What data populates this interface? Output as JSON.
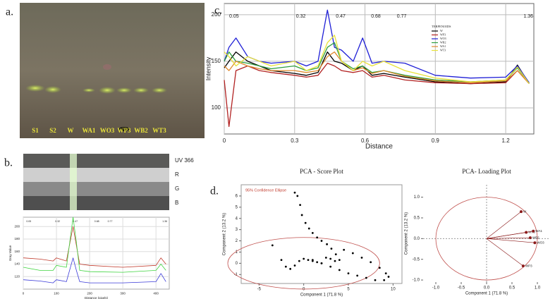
{
  "panel_labels": [
    "a.",
    "b.",
    "c.",
    "d."
  ],
  "tlc_plate": {
    "lane_labels": [
      "S1",
      "S2",
      "W",
      "WA1",
      "WO3",
      "WP3",
      "WB2",
      "WT3"
    ]
  },
  "densitometry": {
    "channel_labels": [
      "UV 366",
      "R",
      "G",
      "B"
    ]
  },
  "chart_data": [
    {
      "type": "line",
      "x_label": "Distance",
      "y_label": "Intensity",
      "annotations": [
        "0.05",
        "0.32",
        "0.47",
        "0.68",
        "0.77",
        "1.36"
      ],
      "legend_title": "TERPENOIDS",
      "x": [
        0,
        0.02,
        0.05,
        0.1,
        0.15,
        0.2,
        0.3,
        0.35,
        0.4,
        0.44,
        0.47,
        0.5,
        0.55,
        0.59,
        0.63,
        0.68,
        0.77,
        0.9,
        1.05,
        1.2,
        1.25,
        1.3
      ],
      "series": [
        {
          "name": "W",
          "color": "#000000",
          "values": [
            143,
            150,
            160,
            150,
            145,
            140,
            137,
            135,
            138,
            160,
            150,
            148,
            140,
            145,
            135,
            137,
            133,
            128,
            126,
            128,
            146,
            126
          ]
        },
        {
          "name": "WP3",
          "color": "#b22222",
          "values": [
            130,
            80,
            140,
            145,
            140,
            138,
            135,
            133,
            135,
            148,
            145,
            140,
            138,
            140,
            133,
            135,
            130,
            127,
            126,
            127,
            140,
            126
          ]
        },
        {
          "name": "WO3",
          "color": "#1f1fd6",
          "values": [
            150,
            165,
            175,
            155,
            150,
            148,
            150,
            145,
            150,
            205,
            165,
            162,
            150,
            175,
            148,
            150,
            148,
            135,
            132,
            133,
            145,
            127
          ]
        },
        {
          "name": "WB2",
          "color": "#2e9e3e",
          "values": [
            150,
            160,
            150,
            148,
            145,
            142,
            145,
            140,
            143,
            165,
            170,
            150,
            142,
            145,
            138,
            140,
            135,
            130,
            128,
            130,
            143,
            126
          ]
        },
        {
          "name": "WA1",
          "color": "#e08a2e",
          "values": [
            145,
            140,
            150,
            145,
            142,
            140,
            140,
            138,
            140,
            155,
            160,
            150,
            140,
            143,
            137,
            140,
            134,
            129,
            127,
            129,
            140,
            126
          ]
        },
        {
          "name": "WT3",
          "color": "#e8e23a",
          "values": [
            160,
            155,
            145,
            155,
            150,
            145,
            150,
            140,
            145,
            170,
            178,
            150,
            140,
            150,
            145,
            150,
            140,
            132,
            128,
            130,
            144,
            126
          ]
        }
      ],
      "xlim": [
        0,
        1.32
      ],
      "xticks": [
        0,
        0.3,
        0.6,
        0.9,
        1.2
      ],
      "ylim": [
        72,
        212
      ],
      "yticks": [
        100,
        150,
        200
      ],
      "grid": true
    },
    {
      "type": "line",
      "x_label": "Distance (pixels)",
      "y_label": "Gray Value",
      "annotations": [
        "0.05",
        "0.32",
        "0.47",
        "0.68",
        "0.77",
        "1.36"
      ],
      "x": [
        0,
        50,
        90,
        100,
        130,
        150,
        160,
        170,
        200,
        300,
        400,
        415,
        430
      ],
      "series": [
        {
          "color": "#c0392b",
          "values": [
            150,
            148,
            145,
            150,
            145,
            200,
            170,
            140,
            138,
            135,
            138,
            150,
            140
          ]
        },
        {
          "color": "#3fd43f",
          "values": [
            135,
            130,
            130,
            138,
            135,
            215,
            175,
            130,
            128,
            127,
            130,
            140,
            130
          ]
        },
        {
          "color": "#3a3ad8",
          "values": [
            115,
            113,
            110,
            115,
            112,
            150,
            130,
            112,
            110,
            110,
            112,
            125,
            112
          ]
        }
      ],
      "xlim": [
        0,
        440
      ],
      "xticks": [
        0,
        100,
        200,
        300,
        400
      ],
      "ylim": [
        100,
        215
      ],
      "yticks": [
        120,
        140,
        160,
        180,
        200
      ],
      "grid": true
    },
    {
      "type": "scatter",
      "title": "PCA - Score Plot",
      "x_label": "Component 1  (71.8 %)",
      "y_label": "Component 2  (13.2 %)",
      "ellipse_label": "95% Confidence Ellipse",
      "ellipse": {
        "center": [
          0,
          0
        ],
        "radii": [
          8.5,
          2.3
        ]
      },
      "x": [
        -1,
        -0.7,
        -0.4,
        -0.2,
        0.2,
        0.6,
        1,
        1.5,
        2,
        2.6,
        3.1,
        3.6,
        4,
        -3.5,
        -2.5,
        -2,
        -1.5,
        -1,
        -0.5,
        0,
        0.5,
        1,
        1.5,
        2,
        2.5,
        3,
        3.5,
        4.5,
        5.5,
        6.5,
        7.5,
        8.5,
        9.2,
        9.5,
        9,
        8,
        7,
        6,
        5,
        4,
        3,
        2,
        1
      ],
      "values": [
        6.3,
        6,
        5.2,
        4.3,
        3.6,
        3.1,
        2.7,
        2.3,
        2,
        1.7,
        1.3,
        0.8,
        0.3,
        1.6,
        0.3,
        -0.3,
        -0.5,
        -0.2,
        0.2,
        0.4,
        0.3,
        0.2,
        0.1,
        0,
        0.5,
        0.4,
        0.2,
        1.2,
        0.9,
        0.5,
        0.1,
        -0.4,
        -0.9,
        -1.2,
        -1.5,
        -1.5,
        -1.3,
        -1.1,
        -0.9,
        -0.6,
        -0.3,
        0,
        0.3
      ],
      "color": "#000000",
      "xlim": [
        -7,
        11
      ],
      "xticks": [
        -5,
        0,
        5,
        10
      ],
      "ylim": [
        -1.8,
        7
      ],
      "yticks": [
        -1,
        0,
        1,
        2,
        3,
        4,
        5,
        6
      ]
    },
    {
      "type": "loading",
      "title": "PCA- Loading Plot",
      "x_label": "Component 1  (71.8 %)",
      "y_label": "Component 2  (13.2 %)",
      "unit_circle": 1,
      "point_labels": [
        "W",
        "WT3",
        "WA1",
        "WB2",
        "WO3",
        "WP3"
      ],
      "x": [
        0.68,
        0.78,
        0.92,
        0.86,
        0.95,
        0.72
      ],
      "values": [
        0.65,
        0.15,
        0.18,
        0.02,
        -0.1,
        -0.66
      ],
      "color": "#8b1a1a",
      "xlim": [
        -1.25,
        1.25
      ],
      "xticks": [
        {
          "value": -1,
          "label": "-1.0"
        },
        -0.5,
        {
          "value": 0,
          "label": "0.0"
        },
        0.5,
        {
          "value": 1,
          "label": "1.0"
        }
      ],
      "ylim": [
        -1.05,
        1.3
      ],
      "yticks": [
        {
          "value": -1,
          "label": "-1.0"
        },
        -0.5,
        {
          "value": 0,
          "label": "0.0"
        },
        0.5,
        {
          "value": 1,
          "label": "1.0"
        }
      ]
    }
  ]
}
